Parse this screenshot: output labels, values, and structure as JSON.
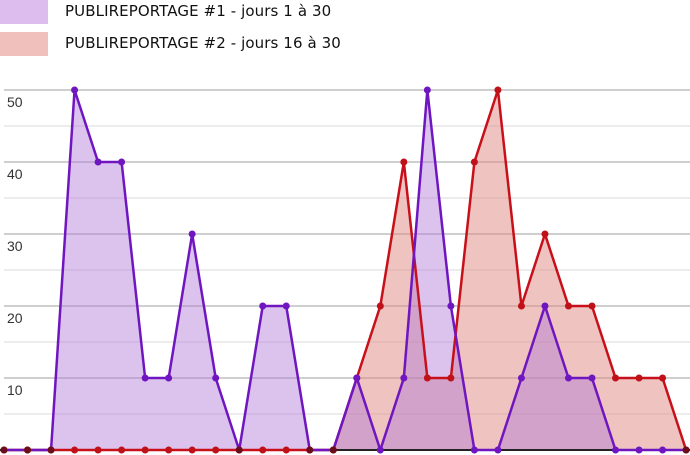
{
  "legend": {
    "items": [
      {
        "label": "PUBLIREPORTAGE  #1 - jours 1 à 30",
        "color": "#dcbdee"
      },
      {
        "label": "PUBLIREPORTAGE  #2 - jours 16 à 30",
        "color": "#f0c0bc"
      }
    ]
  },
  "colors": {
    "series1_line": "#7016c0",
    "series1_fill": "#b27ad8",
    "series2_line": "#c8101a",
    "series2_fill": "#e08880",
    "series2_marker": "#c01018",
    "gridline": "#d0d0d0",
    "baseline": "#222222"
  },
  "chart_data": {
    "type": "area",
    "title": "",
    "xlabel": "",
    "ylabel": "",
    "x": [
      1,
      2,
      3,
      4,
      5,
      6,
      7,
      8,
      9,
      10,
      11,
      12,
      13,
      14,
      15,
      16,
      17,
      18,
      19,
      20,
      21,
      22,
      23,
      24,
      25,
      26,
      27,
      28,
      29,
      30
    ],
    "series": [
      {
        "name": "PUBLIREPORTAGE  #1 - jours 1 à 30",
        "values": [
          0,
          0,
          0,
          50,
          40,
          40,
          10,
          10,
          30,
          10,
          0,
          20,
          20,
          0,
          0,
          10,
          0,
          10,
          50,
          20,
          0,
          0,
          10,
          20,
          10,
          10,
          0,
          0,
          0,
          0
        ]
      },
      {
        "name": "PUBLIREPORTAGE  #2 - jours 16 à 30",
        "values": [
          0,
          0,
          0,
          0,
          0,
          0,
          0,
          0,
          0,
          0,
          0,
          0,
          0,
          0,
          0,
          10,
          20,
          40,
          10,
          10,
          40,
          50,
          20,
          30,
          20,
          20,
          10,
          10,
          10,
          0
        ]
      }
    ],
    "yticks": [
      10,
      20,
      30,
      40,
      50
    ],
    "ylim": [
      0,
      50
    ],
    "grid": true,
    "minor_grid": true,
    "legend_position": "top-left"
  }
}
